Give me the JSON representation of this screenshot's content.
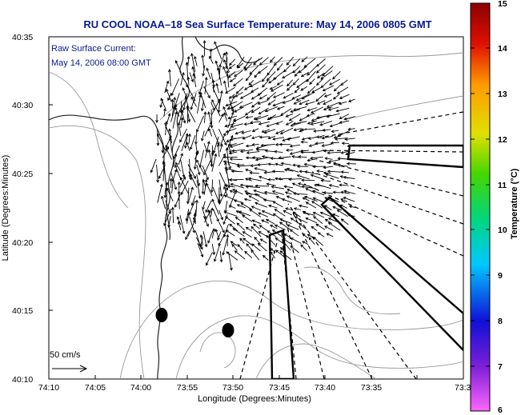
{
  "title": "RU COOL  NOAA–18  Sea Surface Temperature:  May 14, 2006 0805 GMT",
  "annotation": {
    "line1": "Raw Surface Current:",
    "line2": "May 14, 2006 08:00 GMT"
  },
  "scale_label": "50 cm/s",
  "x_axis": {
    "label": "Longitude (Degrees:Minutes)",
    "ticks": [
      "74:10",
      "74:05",
      "74:00",
      "73:55",
      "73:50",
      "73:45",
      "73:40",
      "73:35",
      "73:3"
    ]
  },
  "y_axis": {
    "label": "Latitude (Degrees:Minutes)",
    "ticks": [
      "40:35",
      "40:30",
      "40:25",
      "40:20",
      "40:15",
      "40:10"
    ]
  },
  "colorbar": {
    "label": "Temperature (°C)",
    "ticks": [
      "15",
      "14",
      "13",
      "12",
      "11",
      "10",
      "9",
      "8",
      "7",
      "6"
    ],
    "colors": [
      "#ff66ff",
      "#7b1fd6",
      "#1010d8",
      "#00c8ff",
      "#00d680",
      "#44d600",
      "#e0e000",
      "#ff9a00",
      "#e01000",
      "#8b0000"
    ]
  },
  "features": {
    "coastline": "coastline-icon",
    "bathymetry": "contour-icon",
    "radar_beams": "dashed-line-icon",
    "current_vectors": "arrow-icon",
    "stations": "dot-icon"
  }
}
